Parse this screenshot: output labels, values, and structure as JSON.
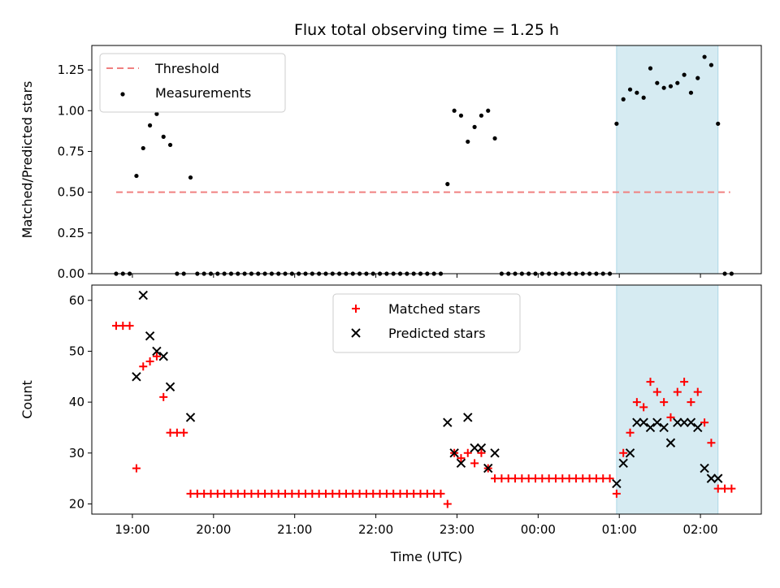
{
  "chart_data": [
    {
      "type": "scatter",
      "title": "Flux total observing time = 1.25 h",
      "xlabel": "",
      "ylabel": "Matched/Predicted stars",
      "xlim": [
        "18:30",
        "02:45"
      ],
      "ylim": [
        0,
        1.4
      ],
      "y_ticks": [
        "0.00",
        "0.25",
        "0.50",
        "0.75",
        "1.00",
        "1.25"
      ],
      "highlight_span": [
        "00:58",
        "02:13"
      ],
      "highlight_color": "#add8e6",
      "legend_position": "upper-left",
      "threshold": {
        "name": "Threshold",
        "y": 0.5,
        "x_range": [
          "18:48",
          "02:22"
        ],
        "color": "#f08080",
        "style": "dashed"
      },
      "series": [
        {
          "name": "Measurements",
          "color": "#000000",
          "marker": "dot",
          "x": [
            "18:48",
            "18:53",
            "18:58",
            "19:03",
            "19:08",
            "19:13",
            "19:18",
            "19:23",
            "19:28",
            "19:33",
            "19:38",
            "19:43",
            "19:48",
            "19:53",
            "19:58",
            "20:03",
            "20:08",
            "20:13",
            "20:18",
            "20:23",
            "20:28",
            "20:33",
            "20:38",
            "20:43",
            "20:48",
            "20:53",
            "20:58",
            "21:03",
            "21:08",
            "21:13",
            "21:18",
            "21:23",
            "21:28",
            "21:33",
            "21:38",
            "21:43",
            "21:48",
            "21:53",
            "21:58",
            "22:03",
            "22:08",
            "22:13",
            "22:18",
            "22:23",
            "22:28",
            "22:33",
            "22:38",
            "22:43",
            "22:48",
            "22:53",
            "22:58",
            "23:03",
            "23:08",
            "23:13",
            "23:18",
            "23:23",
            "23:28",
            "23:33",
            "23:38",
            "23:43",
            "23:48",
            "23:53",
            "23:58",
            "00:03",
            "00:08",
            "00:13",
            "00:18",
            "00:23",
            "00:28",
            "00:33",
            "00:38",
            "00:43",
            "00:48",
            "00:53",
            "00:58",
            "01:03",
            "01:08",
            "01:13",
            "01:18",
            "01:23",
            "01:28",
            "01:33",
            "01:38",
            "01:43",
            "01:48",
            "01:53",
            "01:58",
            "02:03",
            "02:08",
            "02:13",
            "02:18",
            "02:23"
          ],
          "y": [
            0,
            0,
            0,
            0.6,
            0.77,
            0.91,
            0.98,
            0.84,
            0.79,
            0,
            0,
            0.59,
            0,
            0,
            0,
            0,
            0,
            0,
            0,
            0,
            0,
            0,
            0,
            0,
            0,
            0,
            0,
            0,
            0,
            0,
            0,
            0,
            0,
            0,
            0,
            0,
            0,
            0,
            0,
            0,
            0,
            0,
            0,
            0,
            0,
            0,
            0,
            0,
            0,
            0.55,
            1.0,
            0.97,
            0.81,
            0.9,
            0.97,
            1.0,
            0.83,
            0,
            0,
            0,
            0,
            0,
            0,
            0,
            0,
            0,
            0,
            0,
            0,
            0,
            0,
            0,
            0,
            0,
            0.92,
            1.07,
            1.13,
            1.11,
            1.08,
            1.26,
            1.17,
            1.14,
            1.15,
            1.17,
            1.22,
            1.11,
            1.2,
            1.33,
            1.28,
            0.92,
            0,
            0
          ]
        }
      ]
    },
    {
      "type": "scatter",
      "title": "",
      "xlabel": "Time (UTC)",
      "ylabel": "Count",
      "xlim": [
        "18:30",
        "02:45"
      ],
      "ylim": [
        18,
        63
      ],
      "x_ticks": [
        "19:00",
        "20:00",
        "21:00",
        "22:00",
        "23:00",
        "00:00",
        "01:00",
        "02:00"
      ],
      "y_ticks": [
        "20",
        "30",
        "40",
        "50",
        "60"
      ],
      "highlight_span": [
        "00:58",
        "02:13"
      ],
      "highlight_color": "#add8e6",
      "legend_position": "upper-center",
      "series": [
        {
          "name": "Matched stars",
          "color": "#ff0000",
          "marker": "plus",
          "x": [
            "18:48",
            "18:53",
            "18:58",
            "19:03",
            "19:08",
            "19:13",
            "19:18",
            "19:23",
            "19:28",
            "19:33",
            "19:38",
            "19:43",
            "19:48",
            "19:53",
            "19:58",
            "20:03",
            "20:08",
            "20:13",
            "20:18",
            "20:23",
            "20:28",
            "20:33",
            "20:38",
            "20:43",
            "20:48",
            "20:53",
            "20:58",
            "21:03",
            "21:08",
            "21:13",
            "21:18",
            "21:23",
            "21:28",
            "21:33",
            "21:38",
            "21:43",
            "21:48",
            "21:53",
            "21:58",
            "22:03",
            "22:08",
            "22:13",
            "22:18",
            "22:23",
            "22:28",
            "22:33",
            "22:38",
            "22:43",
            "22:48",
            "22:53",
            "22:58",
            "23:03",
            "23:08",
            "23:13",
            "23:18",
            "23:23",
            "23:28",
            "23:33",
            "23:38",
            "23:43",
            "23:48",
            "23:53",
            "23:58",
            "00:03",
            "00:08",
            "00:13",
            "00:18",
            "00:23",
            "00:28",
            "00:33",
            "00:38",
            "00:43",
            "00:48",
            "00:53",
            "00:58",
            "01:03",
            "01:08",
            "01:13",
            "01:18",
            "01:23",
            "01:28",
            "01:33",
            "01:38",
            "01:43",
            "01:48",
            "01:53",
            "01:58",
            "02:03",
            "02:08",
            "02:13",
            "02:18",
            "02:23"
          ],
          "y": [
            55,
            55,
            55,
            27,
            47,
            48,
            49,
            41,
            34,
            34,
            34,
            22,
            22,
            22,
            22,
            22,
            22,
            22,
            22,
            22,
            22,
            22,
            22,
            22,
            22,
            22,
            22,
            22,
            22,
            22,
            22,
            22,
            22,
            22,
            22,
            22,
            22,
            22,
            22,
            22,
            22,
            22,
            22,
            22,
            22,
            22,
            22,
            22,
            22,
            20,
            30,
            29,
            30,
            28,
            30,
            27,
            25,
            25,
            25,
            25,
            25,
            25,
            25,
            25,
            25,
            25,
            25,
            25,
            25,
            25,
            25,
            25,
            25,
            25,
            22,
            30,
            34,
            40,
            39,
            44,
            42,
            40,
            37,
            42,
            44,
            40,
            42,
            36,
            32,
            23,
            23,
            23
          ]
        },
        {
          "name": "Predicted stars",
          "color": "#000000",
          "marker": "x",
          "x": [
            "19:03",
            "19:08",
            "19:13",
            "19:18",
            "19:23",
            "19:28",
            "19:43",
            "22:53",
            "22:58",
            "23:03",
            "23:08",
            "23:13",
            "23:18",
            "23:23",
            "23:28",
            "00:58",
            "01:03",
            "01:08",
            "01:13",
            "01:18",
            "01:23",
            "01:28",
            "01:33",
            "01:38",
            "01:43",
            "01:48",
            "01:53",
            "01:58",
            "02:03",
            "02:08",
            "02:13"
          ],
          "y": [
            45,
            61,
            53,
            50,
            49,
            43,
            37,
            36,
            30,
            28,
            37,
            31,
            31,
            27,
            30,
            24,
            28,
            30,
            36,
            36,
            35,
            36,
            35,
            32,
            36,
            36,
            36,
            35,
            27,
            25,
            25
          ]
        }
      ]
    }
  ]
}
